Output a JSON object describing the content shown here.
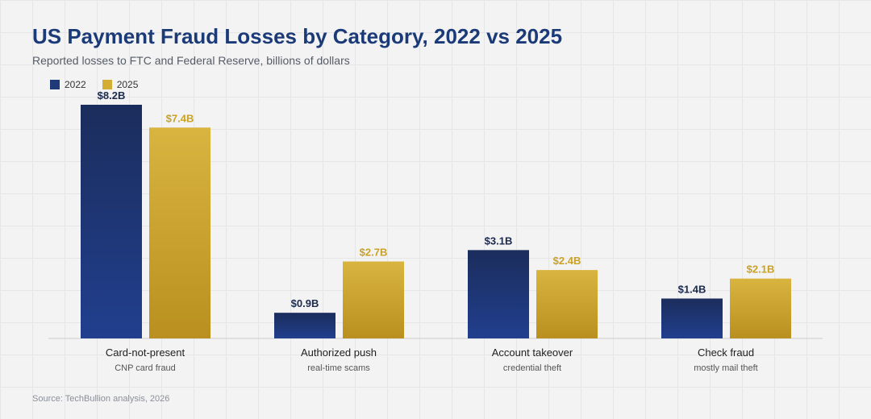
{
  "chart_data": {
    "type": "bar",
    "title": "US Payment Fraud Losses by Category, 2022 vs 2025",
    "subtitle": "Reported losses to FTC and Federal Reserve, billions of dollars",
    "categories": [
      "Card-not-present",
      "Authorized push",
      "Account takeover",
      "Check fraud"
    ],
    "category_subtitles": [
      "CNP card fraud",
      "real-time scams",
      "credential theft",
      "mostly mail theft"
    ],
    "series": [
      {
        "name": "2022",
        "values": [
          8.2,
          0.9,
          3.1,
          1.4
        ],
        "labels": [
          "$8.2B",
          "$0.9B",
          "$3.1B",
          "$1.4B"
        ],
        "color": "#1e3a78",
        "label_color": "#1b2a4e"
      },
      {
        "name": "2025",
        "values": [
          7.4,
          2.7,
          2.4,
          2.1
        ],
        "labels": [
          "$7.4B",
          "$2.7B",
          "$2.4B",
          "$2.1B"
        ],
        "color": "#d4ad35",
        "label_color": "#c9a227"
      }
    ],
    "ylim": [
      0,
      8.2
    ],
    "grid": false,
    "legend": "top-left",
    "source": "Source: TechBullion analysis, 2026"
  }
}
